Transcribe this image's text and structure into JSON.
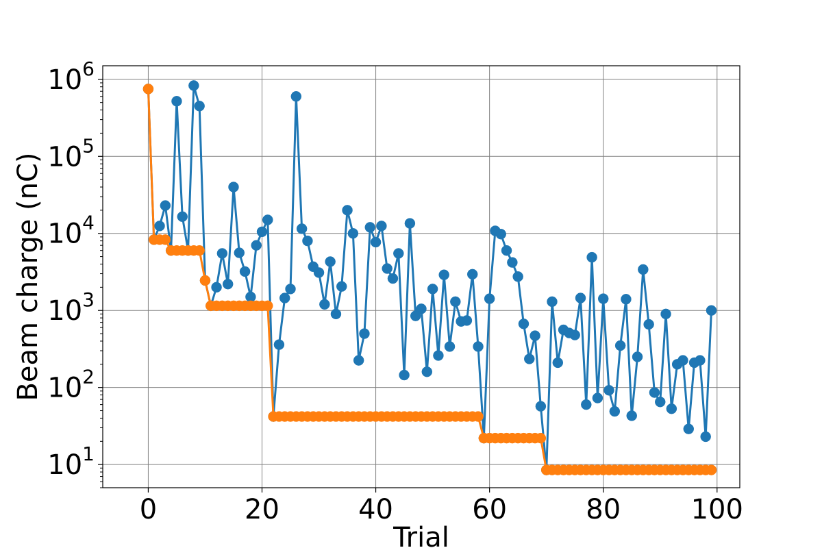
{
  "chart_data": {
    "type": "line",
    "xlabel": "Trial",
    "ylabel": "Beam charge (nC)",
    "x_ticks": [
      0,
      20,
      40,
      60,
      80,
      100
    ],
    "x_tick_labels": [
      "0",
      "20",
      "40",
      "60",
      "80",
      "100"
    ],
    "y_ticks": [
      10,
      100,
      1000,
      10000,
      100000,
      1000000
    ],
    "y_tick_labels": [
      {
        "base": "10",
        "exp": "1"
      },
      {
        "base": "10",
        "exp": "2"
      },
      {
        "base": "10",
        "exp": "3"
      },
      {
        "base": "10",
        "exp": "4"
      },
      {
        "base": "10",
        "exp": "5"
      },
      {
        "base": "10",
        "exp": "6"
      }
    ],
    "xlim": [
      -8,
      104
    ],
    "ylim": [
      5,
      1500000
    ],
    "yscale": "log",
    "grid": true,
    "colors": {
      "series_0": "#1f77b4",
      "series_1": "#ff7f0e",
      "grid": "#808080"
    },
    "series": [
      {
        "values": [
          750000,
          8300,
          12500,
          23000,
          6000,
          520000,
          16500,
          6000,
          830000,
          450000,
          2450,
          1150,
          2000,
          5500,
          2200,
          40000,
          5600,
          3200,
          1500,
          7000,
          10500,
          15000,
          42,
          360,
          1450,
          1900,
          600000,
          11500,
          8000,
          3700,
          3100,
          1200,
          4300,
          900,
          2050,
          20000,
          10000,
          225,
          500,
          12000,
          7700,
          12500,
          3500,
          2600,
          5500,
          145,
          13500,
          850,
          1050,
          160,
          1900,
          260,
          2900,
          340,
          1300,
          720,
          740,
          2950,
          340,
          22,
          1420,
          10800,
          9800,
          6000,
          4200,
          2750,
          670,
          235,
          470,
          57,
          8.5,
          1300,
          210,
          560,
          510,
          480,
          1450,
          60,
          4900,
          73,
          1420,
          92,
          49,
          350,
          1400,
          43,
          250,
          3400,
          660,
          86,
          65,
          900,
          53,
          200,
          225,
          29,
          210,
          225,
          23,
          1000
        ]
      },
      {
        "values": [
          750000,
          8300,
          8300,
          8300,
          6000,
          6000,
          6000,
          6000,
          6000,
          6000,
          2450,
          1150,
          1150,
          1150,
          1150,
          1150,
          1150,
          1150,
          1150,
          1150,
          1150,
          1150,
          42,
          42,
          42,
          42,
          42,
          42,
          42,
          42,
          42,
          42,
          42,
          42,
          42,
          42,
          42,
          42,
          42,
          42,
          42,
          42,
          42,
          42,
          42,
          42,
          42,
          42,
          42,
          42,
          42,
          42,
          42,
          42,
          42,
          42,
          42,
          42,
          42,
          22,
          22,
          22,
          22,
          22,
          22,
          22,
          22,
          22,
          22,
          22,
          8.5,
          8.5,
          8.5,
          8.5,
          8.5,
          8.5,
          8.5,
          8.5,
          8.5,
          8.5,
          8.5,
          8.5,
          8.5,
          8.5,
          8.5,
          8.5,
          8.5,
          8.5,
          8.5,
          8.5,
          8.5,
          8.5,
          8.5,
          8.5,
          8.5,
          8.5,
          8.5,
          8.5,
          8.5,
          8.5
        ]
      }
    ]
  }
}
